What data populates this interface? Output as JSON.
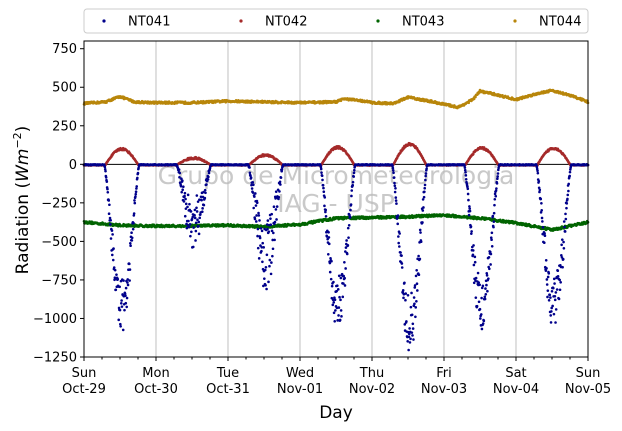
{
  "chart_data": {
    "type": "scatter",
    "xlabel": "Day",
    "ylabel": "Radiation (Wm⁻²)",
    "ylabel_main": "Radiation (",
    "ylabel_unit": "Wm",
    "ylabel_exp": "−2",
    "ylabel_close": ")",
    "ylim": [
      -1250,
      800
    ],
    "yticks": [
      -1250,
      -1000,
      -750,
      -500,
      -250,
      0,
      250,
      500,
      750
    ],
    "ytick_labels": [
      "−1250",
      "−1000",
      "−750",
      "−500",
      "−250",
      "0",
      "250",
      "500",
      "750"
    ],
    "xlim": [
      0,
      7
    ],
    "xticks": [
      {
        "day": "Sun",
        "date": "Oct-29"
      },
      {
        "day": "Mon",
        "date": "Oct-30"
      },
      {
        "day": "Tue",
        "date": "Oct-31"
      },
      {
        "day": "Wed",
        "date": "Nov-01"
      },
      {
        "day": "Thu",
        "date": "Nov-02"
      },
      {
        "day": "Fri",
        "date": "Nov-03"
      },
      {
        "day": "Sat",
        "date": "Nov-04"
      },
      {
        "day": "Sun",
        "date": "Nov-05"
      }
    ],
    "grid": "vertical",
    "zero_line": true,
    "legend_position": "top",
    "watermark_line1": "Grupo de Micrometeorologia",
    "watermark_line2": "IAG - USP",
    "series": [
      {
        "name": "NT041",
        "color": "#00008b",
        "daily_min": [
          -1100,
          -530,
          -820,
          -1080,
          -1250,
          -1090,
          -1080
        ],
        "night_value": 0
      },
      {
        "name": "NT042",
        "color": "#a52a2a",
        "daily_max": [
          100,
          40,
          60,
          110,
          130,
          105,
          105
        ],
        "night_value": 0
      },
      {
        "name": "NT043",
        "color": "#006400",
        "points": [
          [
            0.0,
            -375
          ],
          [
            0.5,
            -395
          ],
          [
            1.0,
            -400
          ],
          [
            1.5,
            -400
          ],
          [
            2.0,
            -395
          ],
          [
            2.5,
            -405
          ],
          [
            3.0,
            -390
          ],
          [
            3.5,
            -350
          ],
          [
            4.0,
            -345
          ],
          [
            4.5,
            -340
          ],
          [
            5.0,
            -330
          ],
          [
            5.5,
            -350
          ],
          [
            6.0,
            -380
          ],
          [
            6.5,
            -425
          ],
          [
            7.0,
            -375
          ]
        ]
      },
      {
        "name": "NT044",
        "color": "#b8860b",
        "points": [
          [
            0.0,
            395
          ],
          [
            0.3,
            405
          ],
          [
            0.5,
            440
          ],
          [
            0.7,
            405
          ],
          [
            1.0,
            400
          ],
          [
            1.5,
            400
          ],
          [
            2.0,
            410
          ],
          [
            2.5,
            405
          ],
          [
            3.0,
            400
          ],
          [
            3.5,
            405
          ],
          [
            3.6,
            425
          ],
          [
            3.9,
            410
          ],
          [
            4.0,
            400
          ],
          [
            4.3,
            395
          ],
          [
            4.5,
            435
          ],
          [
            4.8,
            410
          ],
          [
            5.0,
            390
          ],
          [
            5.2,
            370
          ],
          [
            5.4,
            420
          ],
          [
            5.5,
            475
          ],
          [
            5.7,
            455
          ],
          [
            6.0,
            420
          ],
          [
            6.3,
            460
          ],
          [
            6.5,
            480
          ],
          [
            6.8,
            440
          ],
          [
            7.0,
            405
          ]
        ]
      }
    ]
  }
}
